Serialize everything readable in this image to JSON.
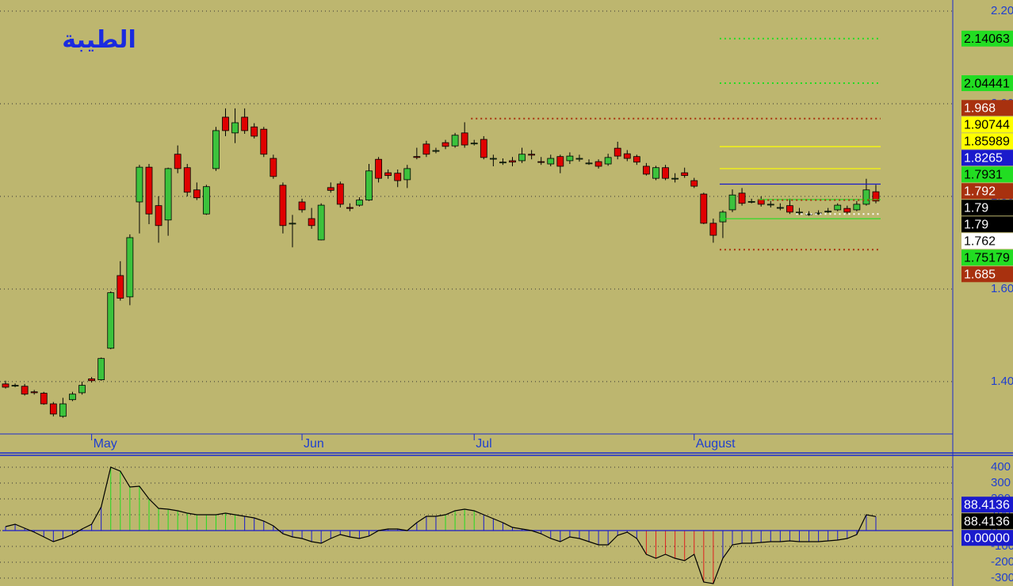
{
  "chart_data": [
    {
      "type": "candlestick",
      "title": "الطيبة",
      "categories": [
        null,
        null,
        null,
        null,
        null,
        null,
        null,
        null,
        null,
        "May",
        null,
        null,
        null,
        null,
        null,
        null,
        null,
        null,
        null,
        null,
        null,
        null,
        null,
        null,
        null,
        null,
        null,
        null,
        null,
        null,
        null,
        "Jun",
        null,
        null,
        null,
        null,
        null,
        null,
        null,
        null,
        null,
        null,
        null,
        null,
        null,
        null,
        null,
        null,
        null,
        "Jul",
        null,
        null,
        null,
        null,
        null,
        null,
        null,
        null,
        null,
        null,
        null,
        null,
        null,
        null,
        null,
        null,
        null,
        null,
        null,
        null,
        null,
        null,
        "August",
        null,
        null,
        null,
        null,
        null,
        null,
        null,
        null,
        null,
        null,
        null,
        null,
        null,
        null,
        null,
        null,
        null,
        null,
        null
      ],
      "open": [
        1.395,
        1.392,
        1.39,
        1.378,
        1.375,
        1.352,
        1.325,
        1.361,
        1.376,
        1.406,
        1.404,
        1.472,
        1.629,
        1.583,
        1.788,
        1.863,
        1.78,
        1.749,
        1.891,
        1.862,
        1.814,
        1.762,
        1.86,
        1.971,
        1.937,
        1.971,
        1.95,
        1.945,
        1.882,
        1.824,
        1.742,
        1.788,
        1.752,
        1.706,
        1.819,
        1.827,
        1.776,
        1.781,
        1.792,
        1.88,
        1.851,
        1.85,
        1.836,
        1.886,
        1.913,
        1.899,
        1.916,
        1.909,
        1.937,
        1.915,
        1.923,
        1.882,
        1.874,
        1.877,
        1.877,
        1.891,
        1.875,
        1.87,
        1.886,
        1.877,
        1.882,
        1.872,
        1.875,
        1.87,
        1.904,
        1.892,
        1.886,
        1.865,
        1.839,
        1.862,
        1.839,
        1.851,
        1.834,
        1.805,
        1.742,
        1.745,
        1.771,
        1.807,
        1.789,
        1.793,
        1.783,
        1.776,
        1.78,
        1.766,
        1.762,
        1.764,
        1.768,
        1.771,
        1.774,
        1.771,
        1.783,
        1.81
      ],
      "high": [
        1.402,
        1.396,
        1.395,
        1.382,
        1.378,
        1.356,
        1.365,
        1.378,
        1.4,
        1.41,
        1.452,
        1.595,
        1.66,
        1.718,
        1.868,
        1.87,
        1.8,
        1.862,
        1.91,
        1.87,
        1.83,
        1.825,
        1.95,
        1.99,
        1.99,
        1.99,
        1.958,
        1.95,
        1.89,
        1.83,
        1.76,
        1.795,
        1.775,
        1.785,
        1.83,
        1.832,
        1.785,
        1.798,
        1.87,
        1.885,
        1.858,
        1.858,
        1.868,
        1.905,
        1.92,
        1.905,
        1.922,
        1.937,
        1.96,
        1.922,
        1.93,
        1.89,
        1.882,
        1.885,
        1.905,
        1.9,
        1.885,
        1.89,
        1.89,
        1.895,
        1.89,
        1.88,
        1.88,
        1.892,
        1.918,
        1.9,
        1.89,
        1.872,
        1.866,
        1.868,
        1.85,
        1.862,
        1.84,
        1.808,
        1.752,
        1.77,
        1.815,
        1.818,
        1.795,
        1.8,
        1.79,
        1.785,
        1.795,
        1.775,
        1.768,
        1.77,
        1.775,
        1.785,
        1.78,
        1.79,
        1.838,
        1.825
      ],
      "low": [
        1.385,
        1.388,
        1.37,
        1.372,
        1.35,
        1.325,
        1.322,
        1.358,
        1.372,
        1.398,
        1.402,
        1.47,
        1.575,
        1.565,
        1.72,
        1.74,
        1.7,
        1.715,
        1.85,
        1.8,
        1.792,
        1.76,
        1.855,
        1.93,
        1.915,
        1.935,
        1.925,
        1.885,
        1.838,
        1.72,
        1.69,
        1.765,
        1.73,
        1.705,
        1.808,
        1.776,
        1.768,
        1.778,
        1.79,
        1.83,
        1.838,
        1.82,
        1.818,
        1.88,
        1.885,
        1.893,
        1.902,
        1.905,
        1.905,
        1.91,
        1.88,
        1.865,
        1.868,
        1.865,
        1.872,
        1.88,
        1.868,
        1.865,
        1.85,
        1.87,
        1.875,
        1.868,
        1.86,
        1.866,
        1.88,
        1.876,
        1.868,
        1.845,
        1.835,
        1.835,
        1.83,
        1.84,
        1.818,
        1.74,
        1.7,
        1.71,
        1.766,
        1.78,
        1.785,
        1.778,
        1.776,
        1.77,
        1.762,
        1.76,
        1.758,
        1.76,
        1.764,
        1.768,
        1.762,
        1.768,
        1.78,
        1.785
      ],
      "close": [
        1.388,
        1.392,
        1.373,
        1.376,
        1.352,
        1.33,
        1.352,
        1.373,
        1.392,
        1.402,
        1.45,
        1.592,
        1.58,
        1.711,
        1.863,
        1.762,
        1.737,
        1.86,
        1.86,
        1.809,
        1.797,
        1.821,
        1.942,
        1.942,
        1.959,
        1.942,
        1.93,
        1.891,
        1.843,
        1.737,
        1.742,
        1.771,
        1.737,
        1.781,
        1.813,
        1.783,
        1.774,
        1.792,
        1.855,
        1.839,
        1.845,
        1.834,
        1.86,
        1.884,
        1.891,
        1.899,
        1.908,
        1.932,
        1.911,
        1.915,
        1.884,
        1.882,
        1.874,
        1.874,
        1.891,
        1.889,
        1.874,
        1.882,
        1.865,
        1.887,
        1.882,
        1.872,
        1.865,
        1.884,
        1.887,
        1.882,
        1.874,
        1.848,
        1.862,
        1.839,
        1.839,
        1.845,
        1.822,
        1.742,
        1.716,
        1.766,
        1.803,
        1.785,
        1.789,
        1.783,
        1.783,
        1.776,
        1.766,
        1.766,
        1.762,
        1.764,
        1.768,
        1.781,
        1.766,
        1.783,
        1.814,
        1.79
      ],
      "up_color": "#3cc23c",
      "down_color": "#e00000",
      "ylim": [
        1.287,
        2.224
      ],
      "yticks": [
        {
          "value": 2.2,
          "label": "2.20"
        },
        {
          "value": 2.0,
          "label": "2.00"
        },
        {
          "value": 1.8,
          "label": "1.80"
        },
        {
          "value": 1.6,
          "label": "1.60"
        },
        {
          "value": 1.4,
          "label": "1.40"
        }
      ],
      "grid": true,
      "levels": [
        {
          "value": 2.14063,
          "color": "#22dd22",
          "text_color": "#000000",
          "line": "dotted",
          "start": 75
        },
        {
          "value": 2.04441,
          "color": "#22dd22",
          "text_color": "#000000",
          "line": "dotted",
          "start": 75
        },
        {
          "value": 1.968,
          "color": "#a8310f",
          "text_color": "#ffffff",
          "line": "dotted",
          "start": 49
        },
        {
          "value": 1.90744,
          "color": "#ffff00",
          "text_color": "#000000",
          "line": "solid",
          "start": 75
        },
        {
          "value": 1.85989,
          "color": "#ffff00",
          "text_color": "#000000",
          "line": "solid",
          "start": 75
        },
        {
          "value": 1.8265,
          "color": "#1a1acc",
          "text_color": "#ffffff",
          "line": "solid",
          "start": 75
        },
        {
          "value": 1.7931,
          "color": "#22dd22",
          "text_color": "#000000",
          "line": "solid",
          "start": 79
        },
        {
          "value": 1.792,
          "color": "#a8310f",
          "text_color": "#ffffff",
          "line": "dotted",
          "start": 79
        },
        {
          "value": 1.79,
          "color": "#000000",
          "text_color": "#ffffff"
        },
        {
          "value": 1.79,
          "color": "#000000",
          "text_color": "#ffffff"
        },
        {
          "value": 1.762,
          "color": "#ffffff",
          "text_color": "#000000",
          "line": "dotted",
          "start": 83
        },
        {
          "value": 1.75179,
          "color": "#22dd22",
          "text_color": "#000000",
          "line": "solid",
          "start": 75
        },
        {
          "value": 1.685,
          "color": "#a8310f",
          "text_color": "#ffffff",
          "line": "dotted",
          "start": 75
        }
      ]
    },
    {
      "type": "oscillator",
      "values": [
        25,
        40,
        15,
        -10,
        -40,
        -70,
        -50,
        -25,
        10,
        40,
        150,
        400,
        375,
        275,
        280,
        200,
        140,
        135,
        125,
        110,
        100,
        100,
        100,
        110,
        100,
        90,
        80,
        60,
        30,
        -20,
        -40,
        -50,
        -70,
        -80,
        -50,
        -25,
        -40,
        -50,
        -35,
        0,
        10,
        10,
        0,
        50,
        90,
        90,
        100,
        125,
        135,
        125,
        100,
        75,
        50,
        20,
        10,
        0,
        -20,
        -50,
        -70,
        -40,
        -50,
        -70,
        -90,
        -90,
        -30,
        -10,
        -50,
        -150,
        -175,
        -150,
        -175,
        -190,
        -150,
        -325,
        -335,
        -175,
        -90,
        -80,
        -80,
        -75,
        -70,
        -70,
        -65,
        -70,
        -70,
        -70,
        -65,
        -60,
        -50,
        -25,
        100,
        88.4136
      ],
      "bar_colors": [
        "#1a1acc",
        "#1a1acc",
        "#1a1acc",
        "#1a1acc",
        "#1a1acc",
        "#1a1acc",
        "#1a1acc",
        "#1a1acc",
        "#1a1acc",
        "#1a1acc",
        "#1a1acc",
        "#22dd22",
        "#22dd22",
        "#22dd22",
        "#22dd22",
        "#22dd22",
        "#22dd22",
        "#22dd22",
        "#22dd22",
        "#22dd22",
        "#22dd22",
        "#22dd22",
        "#22dd22",
        "#22dd22",
        "#22dd22",
        "#1a1acc",
        "#1a1acc",
        "#1a1acc",
        "#1a1acc",
        "#1a1acc",
        "#1a1acc",
        "#1a1acc",
        "#1a1acc",
        "#1a1acc",
        "#1a1acc",
        "#1a1acc",
        "#1a1acc",
        "#1a1acc",
        "#1a1acc",
        "#1a1acc",
        "#1a1acc",
        "#1a1acc",
        "#1a1acc",
        "#1a1acc",
        "#1a1acc",
        "#1a1acc",
        "#22dd22",
        "#22dd22",
        "#22dd22",
        "#22dd22",
        "#1a1acc",
        "#1a1acc",
        "#1a1acc",
        "#1a1acc",
        "#1a1acc",
        "#1a1acc",
        "#1a1acc",
        "#1a1acc",
        "#1a1acc",
        "#1a1acc",
        "#1a1acc",
        "#1a1acc",
        "#1a1acc",
        "#1a1acc",
        "#1a1acc",
        "#1a1acc",
        "#1a1acc",
        "#e02020",
        "#e02020",
        "#e02020",
        "#e02020",
        "#e02020",
        "#e02020",
        "#e02020",
        "#e02020",
        "#1a1acc",
        "#1a1acc",
        "#1a1acc",
        "#1a1acc",
        "#1a1acc",
        "#1a1acc",
        "#1a1acc",
        "#1a1acc",
        "#1a1acc",
        "#1a1acc",
        "#1a1acc",
        "#1a1acc",
        "#1a1acc",
        "#1a1acc",
        "#1a1acc",
        "#1a1acc",
        "#1a1acc"
      ],
      "line_color": "#000000",
      "ylim": [
        -350,
        475
      ],
      "yticks": [
        400,
        300,
        200,
        100,
        0,
        -100,
        -200,
        -300
      ],
      "grid": true,
      "levels": [
        {
          "value": 88.4136,
          "color": "#1a1acc",
          "text_color": "#ffffff"
        },
        {
          "value": 88.4136,
          "color": "#000000",
          "text_color": "#ffffff"
        },
        {
          "value": 0,
          "label": "0.00000",
          "color": "#1a1acc",
          "text_color": "#ffffff",
          "line": "solid",
          "start": 0
        }
      ]
    }
  ]
}
